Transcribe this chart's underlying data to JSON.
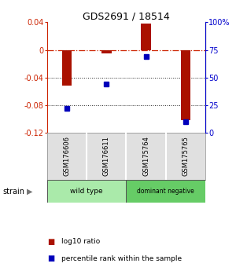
{
  "title": "GDS2691 / 18514",
  "samples": [
    "GSM176606",
    "GSM176611",
    "GSM175764",
    "GSM175765"
  ],
  "log10_ratio": [
    -0.052,
    -0.005,
    0.038,
    -0.102
  ],
  "percentile_rank_pct": [
    22,
    44,
    69,
    10
  ],
  "ylim_left": [
    -0.12,
    0.04
  ],
  "ylim_right": [
    0,
    100
  ],
  "yticks_left": [
    0.04,
    0.0,
    -0.04,
    -0.08,
    -0.12
  ],
  "yticks_left_labels": [
    "0.04",
    "0",
    "-0.04",
    "-0.08",
    "-0.12"
  ],
  "yticks_right": [
    100,
    75,
    50,
    25,
    0
  ],
  "yticks_right_labels": [
    "100%",
    "75",
    "50",
    "25",
    "0"
  ],
  "groups": [
    {
      "label": "wild type",
      "indices": [
        0,
        1
      ],
      "color": "#AAEAAA"
    },
    {
      "label": "dominant negative",
      "indices": [
        2,
        3
      ],
      "color": "#66CC66"
    }
  ],
  "bar_color": "#AA1100",
  "dot_color": "#0000BB",
  "label_color_left": "#CC2200",
  "label_color_right": "#0000CC",
  "hline_color": "#CC2200",
  "dotline_color": "#222222",
  "sample_box_color": "#BBBBBB",
  "sample_box_bg": "#E0E0E0",
  "legend_bar_label": "log10 ratio",
  "legend_dot_label": "percentile rank within the sample",
  "strain_label": "strain",
  "bar_width": 0.25
}
